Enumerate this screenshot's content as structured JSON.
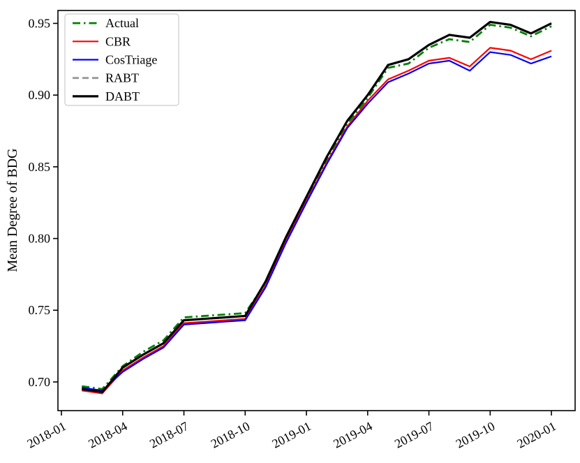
{
  "figure": {
    "background": "#ffffff",
    "axis_color": "#000000"
  },
  "chart_data": {
    "type": "line",
    "title": "",
    "xlabel": "",
    "ylabel": "Mean Degree of BDG",
    "grid": false,
    "legend_position": "upper-left",
    "x_tick_labels": [
      "2018-01",
      "2018-04",
      "2018-07",
      "2018-10",
      "2019-01",
      "2019-04",
      "2019-07",
      "2019-10",
      "2020-01"
    ],
    "x_tick_months": [
      0,
      3,
      6,
      9,
      12,
      15,
      18,
      21,
      24
    ],
    "y_tick_labels": [
      "0.70",
      "0.75",
      "0.80",
      "0.85",
      "0.90",
      "0.95"
    ],
    "y_tick_values": [
      0.7,
      0.75,
      0.8,
      0.85,
      0.9,
      0.95
    ],
    "xlim_months": [
      -0.171,
      25.161
    ],
    "ylim": [
      0.68,
      0.959
    ],
    "x_months": [
      "2018-02",
      "2018-03",
      "2018-04",
      "2018-05",
      "2018-06",
      "2018-07",
      "2018-08",
      "2018-09",
      "2018-10",
      "2018-11",
      "2018-12",
      "2019-01",
      "2019-02",
      "2019-03",
      "2019-04",
      "2019-05",
      "2019-06",
      "2019-07",
      "2019-08",
      "2019-09",
      "2019-10",
      "2019-11",
      "2019-12",
      "2020-01"
    ],
    "x_month_index": [
      1,
      2,
      3,
      4,
      5,
      6,
      7,
      8,
      9,
      10,
      11,
      12,
      13,
      14,
      15,
      16,
      17,
      18,
      19,
      20,
      21,
      22,
      23,
      24
    ],
    "series": [
      {
        "name": "Actual",
        "color": "#008000",
        "style": "dashdot",
        "width": 2.8,
        "values": [
          0.697,
          0.695,
          0.711,
          0.721,
          0.729,
          0.745,
          0.746,
          0.747,
          0.748,
          0.769,
          0.799,
          0.827,
          0.855,
          0.88,
          0.898,
          0.919,
          0.922,
          0.933,
          0.939,
          0.937,
          0.949,
          0.947,
          0.941,
          0.948
        ]
      },
      {
        "name": "CBR",
        "color": "#ff0000",
        "style": "solid",
        "width": 2.2,
        "values": [
          0.694,
          0.692,
          0.708,
          0.717,
          0.725,
          0.741,
          0.742,
          0.743,
          0.744,
          0.767,
          0.798,
          0.826,
          0.853,
          0.878,
          0.896,
          0.911,
          0.917,
          0.924,
          0.926,
          0.92,
          0.933,
          0.931,
          0.925,
          0.931
        ]
      },
      {
        "name": "CosTriage",
        "color": "#0000ff",
        "style": "solid",
        "width": 2.2,
        "values": [
          0.696,
          0.694,
          0.707,
          0.716,
          0.724,
          0.74,
          0.741,
          0.742,
          0.743,
          0.766,
          0.797,
          0.825,
          0.852,
          0.877,
          0.894,
          0.909,
          0.915,
          0.922,
          0.924,
          0.917,
          0.93,
          0.928,
          0.922,
          0.927
        ]
      },
      {
        "name": "RABT",
        "color": "#999999",
        "style": "dashed",
        "width": 2.8,
        "values": [
          0.695,
          0.693,
          0.71,
          0.719,
          0.727,
          0.743,
          0.744,
          0.745,
          0.746,
          0.77,
          0.801,
          0.829,
          0.857,
          0.882,
          0.9,
          0.921,
          0.925,
          0.935,
          0.942,
          0.94,
          0.951,
          0.949,
          0.943,
          0.95
        ]
      },
      {
        "name": "DABT",
        "color": "#000000",
        "style": "solid",
        "width": 3.2,
        "values": [
          0.695,
          0.693,
          0.71,
          0.719,
          0.727,
          0.743,
          0.744,
          0.745,
          0.746,
          0.77,
          0.801,
          0.829,
          0.857,
          0.882,
          0.9,
          0.921,
          0.925,
          0.935,
          0.942,
          0.94,
          0.951,
          0.949,
          0.943,
          0.95
        ]
      }
    ],
    "legend_labels": [
      "Actual",
      "CBR",
      "CosTriage",
      "RABT",
      "DABT"
    ]
  }
}
